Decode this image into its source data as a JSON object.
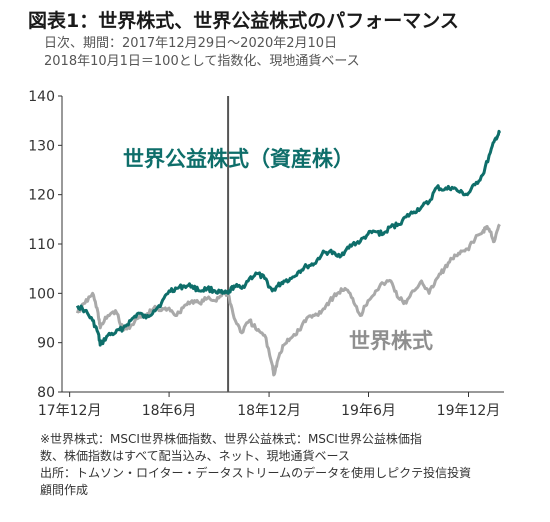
{
  "header": {
    "title": "図表1：世界株式、世界公益株式のパフォーマンス",
    "subtitle_line1": "日次、期間：2017年12月29日～2020年2月10日",
    "subtitle_line2": "2018年10月1日＝100として指数化、現地通貨ベース"
  },
  "footnotes": [
    "※世界株式：MSCI世界株価指数、世界公益株式：MSCI世界公益株価指",
    "数、株価指数はすべて配当込み、ネット、現地通貨ベース",
    "出所：トムソン・ロイター・データストリームのデータを使用しピクテ投信投資",
    "顧問作成"
  ],
  "colors": {
    "utilities": "#0e6e6a",
    "world": "#a9a9a9",
    "marker": "#555555"
  },
  "chart_data": {
    "type": "line",
    "ylim": [
      80,
      140
    ],
    "y_ticks": [
      "80",
      "90",
      "100",
      "110",
      "120",
      "130",
      "140"
    ],
    "x_ticks": [
      "17年12月",
      "18年6月",
      "18年12月",
      "19年6月",
      "19年12月"
    ],
    "reference_line": "2018-10-01",
    "grid": false,
    "series": [
      {
        "name": "世界公益株式（資産株）",
        "color": "#0e6e6a",
        "points": [
          [
            "2017-12-29",
            97.5
          ],
          [
            "2018-01-12",
            96.5
          ],
          [
            "2018-01-26",
            94.5
          ],
          [
            "2018-02-05",
            92.0
          ],
          [
            "2018-02-09",
            89.5
          ],
          [
            "2018-02-23",
            91.5
          ],
          [
            "2018-03-09",
            92.0
          ],
          [
            "2018-03-23",
            93.0
          ],
          [
            "2018-04-06",
            94.5
          ],
          [
            "2018-04-20",
            96.0
          ],
          [
            "2018-05-04",
            95.0
          ],
          [
            "2018-05-18",
            96.5
          ],
          [
            "2018-06-01",
            98.0
          ],
          [
            "2018-06-15",
            100.5
          ],
          [
            "2018-06-29",
            101.0
          ],
          [
            "2018-07-13",
            101.5
          ],
          [
            "2018-07-27",
            101.5
          ],
          [
            "2018-08-10",
            100.5
          ],
          [
            "2018-08-24",
            101.0
          ],
          [
            "2018-09-07",
            100.5
          ],
          [
            "2018-09-21",
            100.0
          ],
          [
            "2018-10-01",
            100.0
          ],
          [
            "2018-10-12",
            101.5
          ],
          [
            "2018-10-26",
            101.0
          ],
          [
            "2018-11-09",
            103.0
          ],
          [
            "2018-11-23",
            104.0
          ],
          [
            "2018-12-07",
            103.0
          ],
          [
            "2018-12-21",
            100.5
          ],
          [
            "2018-12-31",
            101.5
          ],
          [
            "2019-01-11",
            102.5
          ],
          [
            "2019-01-25",
            103.0
          ],
          [
            "2019-02-08",
            104.5
          ],
          [
            "2019-02-22",
            105.5
          ],
          [
            "2019-03-08",
            106.0
          ],
          [
            "2019-03-22",
            108.0
          ],
          [
            "2019-04-05",
            108.5
          ],
          [
            "2019-04-19",
            107.5
          ],
          [
            "2019-05-03",
            108.5
          ],
          [
            "2019-05-17",
            110.0
          ],
          [
            "2019-05-31",
            110.5
          ],
          [
            "2019-06-14",
            112.0
          ],
          [
            "2019-06-28",
            112.5
          ],
          [
            "2019-07-12",
            112.0
          ],
          [
            "2019-07-26",
            113.5
          ],
          [
            "2019-08-09",
            114.0
          ],
          [
            "2019-08-23",
            115.5
          ],
          [
            "2019-09-06",
            116.5
          ],
          [
            "2019-09-20",
            117.5
          ],
          [
            "2019-10-04",
            118.5
          ],
          [
            "2019-10-18",
            121.5
          ],
          [
            "2019-11-01",
            121.0
          ],
          [
            "2019-11-15",
            121.5
          ],
          [
            "2019-11-29",
            120.5
          ],
          [
            "2019-12-13",
            120.0
          ],
          [
            "2019-12-27",
            122.0
          ],
          [
            "2020-01-10",
            124.0
          ],
          [
            "2020-01-24",
            128.5
          ],
          [
            "2020-02-03",
            131.5
          ],
          [
            "2020-02-10",
            132.5
          ]
        ]
      },
      {
        "name": "世界株式",
        "color": "#a9a9a9",
        "points": [
          [
            "2017-12-29",
            96.0
          ],
          [
            "2018-01-12",
            98.0
          ],
          [
            "2018-01-26",
            100.0
          ],
          [
            "2018-02-05",
            96.0
          ],
          [
            "2018-02-09",
            93.0
          ],
          [
            "2018-02-23",
            95.5
          ],
          [
            "2018-03-09",
            96.5
          ],
          [
            "2018-03-23",
            92.5
          ],
          [
            "2018-04-06",
            93.5
          ],
          [
            "2018-04-20",
            95.0
          ],
          [
            "2018-05-04",
            95.5
          ],
          [
            "2018-05-18",
            97.0
          ],
          [
            "2018-06-01",
            96.5
          ],
          [
            "2018-06-15",
            97.0
          ],
          [
            "2018-06-29",
            95.5
          ],
          [
            "2018-07-13",
            97.5
          ],
          [
            "2018-07-27",
            98.5
          ],
          [
            "2018-08-10",
            98.0
          ],
          [
            "2018-08-24",
            99.0
          ],
          [
            "2018-09-07",
            98.5
          ],
          [
            "2018-09-21",
            100.0
          ],
          [
            "2018-10-01",
            100.0
          ],
          [
            "2018-10-12",
            95.0
          ],
          [
            "2018-10-26",
            92.0
          ],
          [
            "2018-11-09",
            94.5
          ],
          [
            "2018-11-23",
            92.5
          ],
          [
            "2018-12-07",
            91.5
          ],
          [
            "2018-12-21",
            85.5
          ],
          [
            "2018-12-24",
            83.5
          ],
          [
            "2018-12-31",
            86.5
          ],
          [
            "2019-01-11",
            89.5
          ],
          [
            "2019-01-25",
            91.0
          ],
          [
            "2019-02-08",
            92.5
          ],
          [
            "2019-02-22",
            95.0
          ],
          [
            "2019-03-08",
            95.5
          ],
          [
            "2019-03-22",
            96.5
          ],
          [
            "2019-04-05",
            98.5
          ],
          [
            "2019-04-19",
            100.0
          ],
          [
            "2019-05-03",
            101.0
          ],
          [
            "2019-05-17",
            99.0
          ],
          [
            "2019-05-31",
            95.5
          ],
          [
            "2019-06-14",
            98.5
          ],
          [
            "2019-06-28",
            100.5
          ],
          [
            "2019-07-12",
            102.0
          ],
          [
            "2019-07-26",
            102.5
          ],
          [
            "2019-08-09",
            99.0
          ],
          [
            "2019-08-23",
            98.0
          ],
          [
            "2019-09-06",
            100.5
          ],
          [
            "2019-09-20",
            102.5
          ],
          [
            "2019-10-04",
            100.0
          ],
          [
            "2019-10-18",
            103.0
          ],
          [
            "2019-11-01",
            105.0
          ],
          [
            "2019-11-15",
            107.0
          ],
          [
            "2019-11-29",
            108.0
          ],
          [
            "2019-12-13",
            109.0
          ],
          [
            "2019-12-27",
            111.0
          ],
          [
            "2020-01-10",
            112.5
          ],
          [
            "2020-01-17",
            113.5
          ],
          [
            "2020-01-24",
            112.5
          ],
          [
            "2020-01-31",
            110.5
          ],
          [
            "2020-02-10",
            114.0
          ]
        ]
      }
    ]
  }
}
